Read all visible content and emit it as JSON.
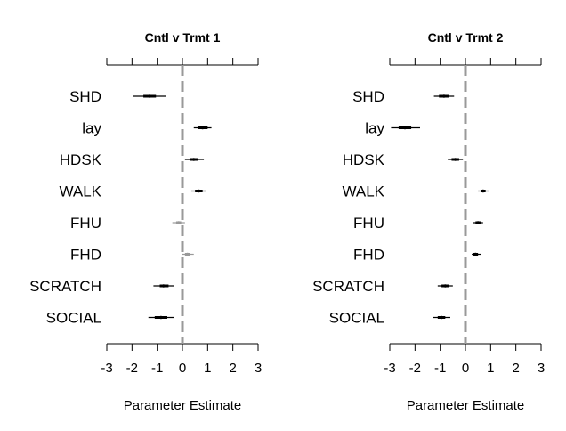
{
  "chart_data": [
    {
      "type": "forest",
      "title": "Cntl v Trmt 1",
      "xlabel": "Parameter Estimate",
      "ylabel": "",
      "xlim": [
        -3,
        3
      ],
      "xticks": [
        "-3",
        "-2",
        "-1",
        "0",
        "1",
        "2",
        "3"
      ],
      "reference_line": 0,
      "grid": false,
      "categories": [
        "SHD",
        "lay",
        "HDSK",
        "WALK",
        "FHU",
        "FHD",
        "SCRATCH",
        "SOCIAL"
      ],
      "estimates": [
        -1.3,
        0.8,
        0.45,
        0.65,
        -0.15,
        0.2,
        -0.75,
        -0.85
      ],
      "ci_inner": [
        [
          -1.55,
          -1.05
        ],
        [
          0.6,
          1.0
        ],
        [
          0.3,
          0.6
        ],
        [
          0.5,
          0.8
        ],
        [
          -0.25,
          -0.05
        ],
        [
          0.1,
          0.3
        ],
        [
          -0.9,
          -0.55
        ],
        [
          -1.1,
          -0.6
        ]
      ],
      "ci_outer": [
        [
          -1.95,
          -0.65
        ],
        [
          0.45,
          1.15
        ],
        [
          0.1,
          0.85
        ],
        [
          0.35,
          0.95
        ],
        [
          -0.4,
          0.1
        ],
        [
          0.0,
          0.45
        ],
        [
          -1.15,
          -0.35
        ],
        [
          -1.35,
          -0.35
        ]
      ],
      "significant": [
        true,
        true,
        true,
        true,
        false,
        false,
        true,
        true
      ]
    },
    {
      "type": "forest",
      "title": "Cntl v Trmt 2",
      "xlabel": "Parameter Estimate",
      "ylabel": "",
      "xlim": [
        -3,
        3
      ],
      "xticks": [
        "-3",
        "-2",
        "-1",
        "0",
        "1",
        "2",
        "3"
      ],
      "reference_line": 0,
      "grid": false,
      "categories": [
        "SHD",
        "lay",
        "HDSK",
        "WALK",
        "FHU",
        "FHD",
        "SCRATCH",
        "SOCIAL"
      ],
      "estimates": [
        -0.85,
        -2.4,
        -0.4,
        0.7,
        0.5,
        0.4,
        -0.8,
        -0.95
      ],
      "ci_inner": [
        [
          -1.05,
          -0.65
        ],
        [
          -2.65,
          -2.15
        ],
        [
          -0.55,
          -0.25
        ],
        [
          0.6,
          0.8
        ],
        [
          0.4,
          0.6
        ],
        [
          0.3,
          0.5
        ],
        [
          -0.95,
          -0.65
        ],
        [
          -1.1,
          -0.8
        ]
      ],
      "ci_outer": [
        [
          -1.25,
          -0.45
        ],
        [
          -2.95,
          -1.8
        ],
        [
          -0.7,
          -0.1
        ],
        [
          0.5,
          0.95
        ],
        [
          0.3,
          0.7
        ],
        [
          0.25,
          0.6
        ],
        [
          -1.1,
          -0.5
        ],
        [
          -1.3,
          -0.6
        ]
      ],
      "significant": [
        true,
        true,
        true,
        true,
        true,
        true,
        true,
        true
      ]
    }
  ],
  "colors": {
    "significant": "#000000",
    "not_significant": "#999999",
    "reference_line": "#999999",
    "axis": "#000000"
  }
}
